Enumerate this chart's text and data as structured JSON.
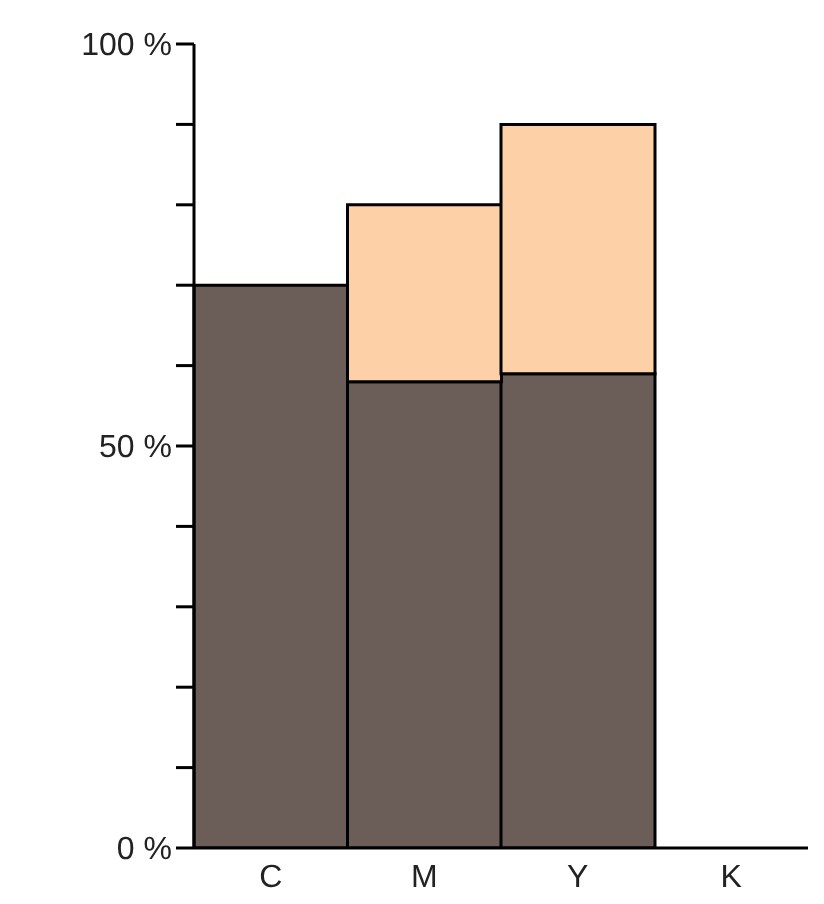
{
  "chart_data": {
    "type": "bar",
    "stacked": true,
    "categories": [
      "C",
      "M",
      "Y",
      "K"
    ],
    "series": [
      {
        "color": "#6b5d58",
        "values": [
          70,
          58,
          59,
          0
        ]
      },
      {
        "color": "#fdd0a8",
        "values": [
          0,
          22,
          31,
          0
        ]
      }
    ],
    "ylim": [
      0,
      100
    ],
    "yticks": [
      {
        "value": 0,
        "label": "0 %"
      },
      {
        "value": 10,
        "label": null
      },
      {
        "value": 20,
        "label": null
      },
      {
        "value": 30,
        "label": null
      },
      {
        "value": 40,
        "label": null
      },
      {
        "value": 50,
        "label": "50 %"
      },
      {
        "value": 60,
        "label": null
      },
      {
        "value": 70,
        "label": null
      },
      {
        "value": 80,
        "label": null
      },
      {
        "value": 90,
        "label": null
      },
      {
        "value": 100,
        "label": "100 %"
      }
    ],
    "grid": false,
    "legend": false
  }
}
